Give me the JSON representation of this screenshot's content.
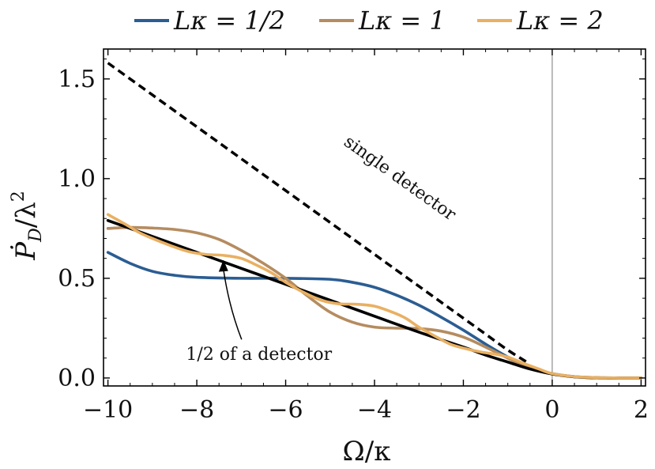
{
  "chart_data": {
    "type": "line",
    "title": "",
    "xlabel": "Ω/κ",
    "ylabel": "Ṗ_D/λ²",
    "ylabel_parts": {
      "main": "Ṗ",
      "sub": "D",
      "slash": "/λ",
      "sup": "2"
    },
    "xlim": [
      -10.1,
      2.1
    ],
    "ylim": [
      -0.04,
      1.65
    ],
    "xticks": [
      -10,
      -8,
      -6,
      -4,
      -2,
      0,
      2
    ],
    "xtick_labels": [
      "−10",
      "−8",
      "−6",
      "−4",
      "−2",
      "0",
      "2"
    ],
    "yticks": [
      0.0,
      0.5,
      1.0,
      1.5
    ],
    "ytick_labels": [
      "0.0",
      "0.5",
      "1.0",
      "1.5"
    ],
    "grid": false,
    "legend_position": "top",
    "legend": [
      "Lκ = 1/2",
      "Lκ = 1",
      "Lκ = 2"
    ],
    "series": [
      {
        "name": "Lκ = 1/2",
        "color": "#2b5d92",
        "style": "solid",
        "points": [
          [
            -10,
            0.63
          ],
          [
            -9.5,
            0.575
          ],
          [
            -9,
            0.535
          ],
          [
            -8.5,
            0.515
          ],
          [
            -8,
            0.505
          ],
          [
            -7,
            0.5
          ],
          [
            -6,
            0.5
          ],
          [
            -5,
            0.495
          ],
          [
            -4.5,
            0.48
          ],
          [
            -4,
            0.455
          ],
          [
            -3.5,
            0.415
          ],
          [
            -3,
            0.365
          ],
          [
            -2.5,
            0.305
          ],
          [
            -2,
            0.24
          ],
          [
            -1.5,
            0.17
          ],
          [
            -1,
            0.105
          ],
          [
            -0.5,
            0.05
          ],
          [
            0,
            0.022
          ],
          [
            0.5,
            0.007
          ],
          [
            1,
            0.002
          ],
          [
            1.5,
            0.0
          ],
          [
            2,
            0.0
          ]
        ]
      },
      {
        "name": "Lκ = 1",
        "color": "#b58c60",
        "style": "solid",
        "points": [
          [
            -10,
            0.75
          ],
          [
            -9.5,
            0.755
          ],
          [
            -9,
            0.752
          ],
          [
            -8.5,
            0.745
          ],
          [
            -8,
            0.728
          ],
          [
            -7.5,
            0.695
          ],
          [
            -7,
            0.64
          ],
          [
            -6.5,
            0.575
          ],
          [
            -6,
            0.5
          ],
          [
            -5.5,
            0.41
          ],
          [
            -5,
            0.33
          ],
          [
            -4.5,
            0.28
          ],
          [
            -4,
            0.255
          ],
          [
            -3.5,
            0.25
          ],
          [
            -3,
            0.248
          ],
          [
            -2.5,
            0.235
          ],
          [
            -2,
            0.205
          ],
          [
            -1.5,
            0.155
          ],
          [
            -1,
            0.1
          ],
          [
            -0.5,
            0.05
          ],
          [
            0,
            0.02
          ],
          [
            0.5,
            0.006
          ],
          [
            1,
            0.001
          ],
          [
            1.5,
            0.0
          ],
          [
            2,
            0.0
          ]
        ]
      },
      {
        "name": "Lκ = 2",
        "color": "#e9b062",
        "style": "solid",
        "points": [
          [
            -10,
            0.82
          ],
          [
            -9.6,
            0.77
          ],
          [
            -9.3,
            0.73
          ],
          [
            -9,
            0.7
          ],
          [
            -8.6,
            0.665
          ],
          [
            -8.2,
            0.635
          ],
          [
            -7.8,
            0.62
          ],
          [
            -7.4,
            0.615
          ],
          [
            -7,
            0.6
          ],
          [
            -6.6,
            0.56
          ],
          [
            -6.3,
            0.525
          ],
          [
            -6,
            0.48
          ],
          [
            -5.6,
            0.43
          ],
          [
            -5.2,
            0.39
          ],
          [
            -4.8,
            0.372
          ],
          [
            -4.4,
            0.37
          ],
          [
            -4,
            0.36
          ],
          [
            -3.6,
            0.33
          ],
          [
            -3.3,
            0.3
          ],
          [
            -3,
            0.255
          ],
          [
            -2.6,
            0.205
          ],
          [
            -2.3,
            0.17
          ],
          [
            -2,
            0.15
          ],
          [
            -1.6,
            0.13
          ],
          [
            -1.3,
            0.12
          ],
          [
            -1,
            0.105
          ],
          [
            -0.6,
            0.07
          ],
          [
            -0.3,
            0.045
          ],
          [
            0,
            0.022
          ],
          [
            0.5,
            0.007
          ],
          [
            1,
            0.002
          ],
          [
            1.5,
            0.0
          ],
          [
            2,
            0.0
          ]
        ]
      },
      {
        "name": "1/2 of a detector",
        "color": "#000000",
        "style": "solid",
        "points": [
          [
            -10,
            0.79
          ],
          [
            -9,
            0.71
          ],
          [
            -8,
            0.63
          ],
          [
            -7,
            0.55
          ],
          [
            -6,
            0.47
          ],
          [
            -5,
            0.39
          ],
          [
            -4,
            0.31
          ],
          [
            -3,
            0.23
          ],
          [
            -2,
            0.155
          ],
          [
            -1.5,
            0.115
          ],
          [
            -1,
            0.08
          ],
          [
            -0.5,
            0.045
          ],
          [
            0,
            0.02
          ],
          [
            0.5,
            0.006
          ],
          [
            1,
            0.001
          ],
          [
            1.5,
            0.0
          ],
          [
            2,
            0.0
          ]
        ]
      },
      {
        "name": "single detector",
        "color": "#000000",
        "style": "dashed",
        "points": [
          [
            -10,
            1.58
          ],
          [
            -9,
            1.42
          ],
          [
            -8,
            1.26
          ],
          [
            -7,
            1.1
          ],
          [
            -6,
            0.94
          ],
          [
            -5,
            0.78
          ],
          [
            -4,
            0.62
          ],
          [
            -3,
            0.46
          ],
          [
            -2,
            0.3
          ],
          [
            -1.5,
            0.22
          ],
          [
            -1,
            0.14
          ],
          [
            -0.5,
            0.07
          ]
        ]
      }
    ],
    "annotations": [
      {
        "text": "single detector",
        "x": -3.5,
        "y": 0.98,
        "rotate_with": "single detector"
      },
      {
        "text": "1/2 of a detector",
        "x": -6.6,
        "y": 0.09,
        "arrow_to": [
          -7.4,
          0.6
        ]
      }
    ],
    "vertical_line_at": 0
  }
}
